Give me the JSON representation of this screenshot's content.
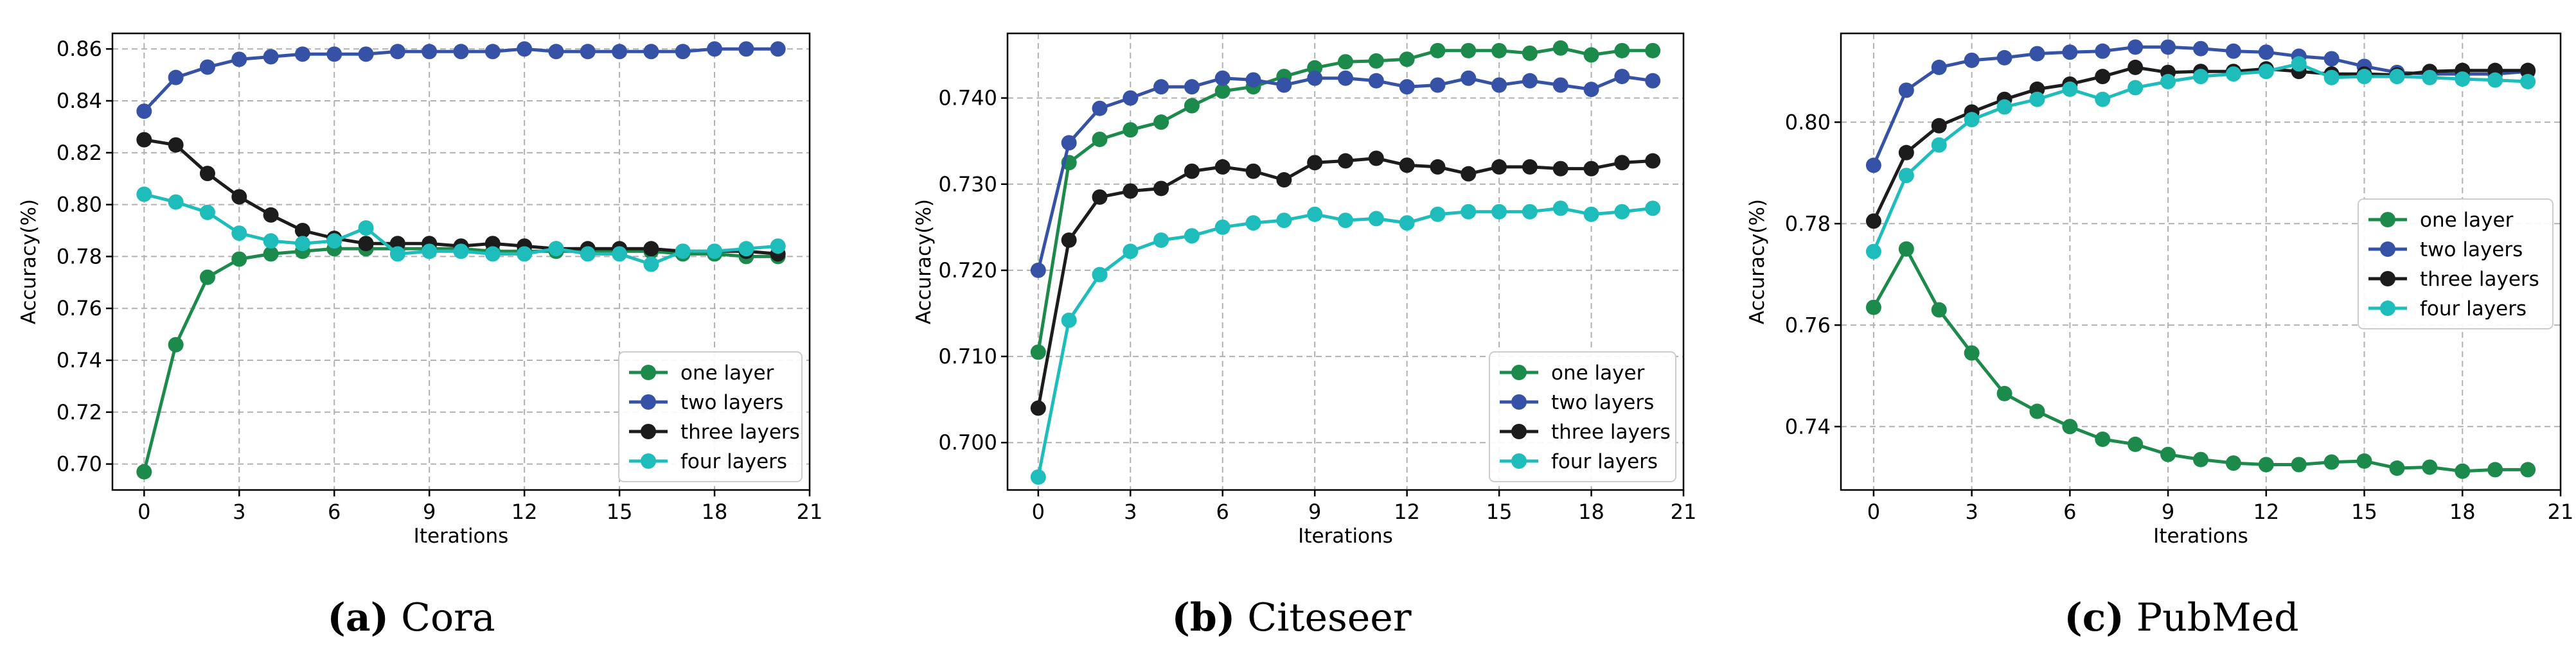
{
  "chart_data": [
    {
      "type": "line",
      "caption_letter": "(a)",
      "caption_name": "Cora",
      "xlabel": "Iterations",
      "ylabel": "Accuracy(%)",
      "xlim": [
        -1,
        21
      ],
      "ylim": [
        0.69,
        0.866
      ],
      "xticks": [
        0,
        3,
        6,
        9,
        12,
        15,
        18,
        21
      ],
      "yticks": [
        0.7,
        0.72,
        0.74,
        0.76,
        0.78,
        0.8,
        0.82,
        0.84,
        0.86
      ],
      "ytick_decimals": 2,
      "grid": true,
      "legend_position": "lower-right",
      "x": [
        0,
        1,
        2,
        3,
        4,
        5,
        6,
        7,
        8,
        9,
        10,
        11,
        12,
        13,
        14,
        15,
        16,
        17,
        18,
        19,
        20
      ],
      "series": [
        {
          "name": "one layer",
          "color": "#1b8a4a",
          "values": [
            0.697,
            0.746,
            0.772,
            0.779,
            0.781,
            0.782,
            0.783,
            0.783,
            0.783,
            0.783,
            0.783,
            0.782,
            0.782,
            0.782,
            0.782,
            0.782,
            0.782,
            0.781,
            0.781,
            0.78,
            0.78
          ]
        },
        {
          "name": "two layers",
          "color": "#3652a6",
          "values": [
            0.836,
            0.849,
            0.853,
            0.856,
            0.857,
            0.858,
            0.858,
            0.858,
            0.859,
            0.859,
            0.859,
            0.859,
            0.86,
            0.859,
            0.859,
            0.859,
            0.859,
            0.859,
            0.86,
            0.86,
            0.86
          ]
        },
        {
          "name": "three layers",
          "color": "#1c1c1c",
          "values": [
            0.825,
            0.823,
            0.812,
            0.803,
            0.796,
            0.79,
            0.787,
            0.785,
            0.785,
            0.785,
            0.784,
            0.785,
            0.784,
            0.783,
            0.783,
            0.783,
            0.783,
            0.782,
            0.782,
            0.782,
            0.781
          ]
        },
        {
          "name": "four layers",
          "color": "#1fbcbc",
          "values": [
            0.804,
            0.801,
            0.797,
            0.789,
            0.786,
            0.785,
            0.786,
            0.791,
            0.781,
            0.782,
            0.782,
            0.781,
            0.781,
            0.783,
            0.781,
            0.781,
            0.777,
            0.782,
            0.782,
            0.783,
            0.784
          ]
        }
      ]
    },
    {
      "type": "line",
      "caption_letter": "(b)",
      "caption_name": "Citeseer",
      "xlabel": "Iterations",
      "ylabel": "Accuracy(%)",
      "xlim": [
        -1,
        21
      ],
      "ylim": [
        0.6945,
        0.7475
      ],
      "xticks": [
        0,
        3,
        6,
        9,
        12,
        15,
        18,
        21
      ],
      "yticks": [
        0.7,
        0.71,
        0.72,
        0.73,
        0.74
      ],
      "ytick_decimals": 3,
      "grid": true,
      "legend_position": "lower-right",
      "x": [
        0,
        1,
        2,
        3,
        4,
        5,
        6,
        7,
        8,
        9,
        10,
        11,
        12,
        13,
        14,
        15,
        16,
        17,
        18,
        19,
        20
      ],
      "series": [
        {
          "name": "one layer",
          "color": "#1b8a4a",
          "values": [
            0.7105,
            0.7325,
            0.7352,
            0.7363,
            0.7372,
            0.7391,
            0.7408,
            0.7413,
            0.7425,
            0.7435,
            0.7442,
            0.7443,
            0.7445,
            0.7455,
            0.7455,
            0.7455,
            0.7452,
            0.7458,
            0.745,
            0.7455,
            0.7455
          ]
        },
        {
          "name": "two layers",
          "color": "#3652a6",
          "values": [
            0.72,
            0.7348,
            0.7388,
            0.74,
            0.7413,
            0.7413,
            0.7423,
            0.7421,
            0.7415,
            0.7423,
            0.7423,
            0.742,
            0.7413,
            0.7415,
            0.7423,
            0.7415,
            0.742,
            0.7415,
            0.741,
            0.7425,
            0.742
          ]
        },
        {
          "name": "three layers",
          "color": "#1c1c1c",
          "values": [
            0.704,
            0.7235,
            0.7285,
            0.7292,
            0.7295,
            0.7315,
            0.732,
            0.7315,
            0.7305,
            0.7325,
            0.7327,
            0.733,
            0.7322,
            0.732,
            0.7312,
            0.732,
            0.732,
            0.7318,
            0.7318,
            0.7325,
            0.7327
          ]
        },
        {
          "name": "four layers",
          "color": "#1fbcbc",
          "values": [
            0.696,
            0.7142,
            0.7195,
            0.7222,
            0.7235,
            0.724,
            0.725,
            0.7255,
            0.7258,
            0.7265,
            0.7258,
            0.726,
            0.7255,
            0.7265,
            0.7268,
            0.7268,
            0.7268,
            0.7272,
            0.7265,
            0.7268,
            0.7272
          ]
        }
      ]
    },
    {
      "type": "line",
      "caption_letter": "(c)",
      "caption_name": "PubMed",
      "xlabel": "Iterations",
      "ylabel": "Accuracy(%)",
      "xlim": [
        -1,
        21
      ],
      "ylim": [
        0.7275,
        0.8175
      ],
      "xticks": [
        0,
        3,
        6,
        9,
        12,
        15,
        18,
        21
      ],
      "yticks": [
        0.74,
        0.76,
        0.78,
        0.8
      ],
      "ytick_decimals": 2,
      "grid": true,
      "legend_position": "center-right",
      "x": [
        0,
        1,
        2,
        3,
        4,
        5,
        6,
        7,
        8,
        9,
        10,
        11,
        12,
        13,
        14,
        15,
        16,
        17,
        18,
        19,
        20
      ],
      "series": [
        {
          "name": "one layer",
          "color": "#1b8a4a",
          "values": [
            0.7635,
            0.775,
            0.763,
            0.7545,
            0.7465,
            0.743,
            0.74,
            0.7375,
            0.7365,
            0.7345,
            0.7335,
            0.7328,
            0.7325,
            0.7325,
            0.733,
            0.7332,
            0.7318,
            0.732,
            0.7312,
            0.7315,
            0.7315
          ]
        },
        {
          "name": "two layers",
          "color": "#3652a6",
          "values": [
            0.7915,
            0.8063,
            0.8108,
            0.8122,
            0.8127,
            0.8135,
            0.8138,
            0.814,
            0.8148,
            0.8148,
            0.8145,
            0.814,
            0.8138,
            0.813,
            0.8125,
            0.811,
            0.8098,
            0.8095,
            0.8095,
            0.8095,
            0.81
          ]
        },
        {
          "name": "three layers",
          "color": "#1c1c1c",
          "values": [
            0.7805,
            0.794,
            0.7993,
            0.802,
            0.8045,
            0.8065,
            0.8075,
            0.809,
            0.8108,
            0.8098,
            0.81,
            0.81,
            0.8105,
            0.81,
            0.8095,
            0.8095,
            0.8093,
            0.81,
            0.8102,
            0.8102,
            0.8102
          ]
        },
        {
          "name": "four layers",
          "color": "#1fbcbc",
          "values": [
            0.7745,
            0.7895,
            0.7955,
            0.8005,
            0.803,
            0.8045,
            0.8065,
            0.8045,
            0.8068,
            0.808,
            0.809,
            0.8095,
            0.81,
            0.8115,
            0.8088,
            0.809,
            0.809,
            0.8088,
            0.8085,
            0.8083,
            0.808
          ]
        }
      ]
    }
  ]
}
